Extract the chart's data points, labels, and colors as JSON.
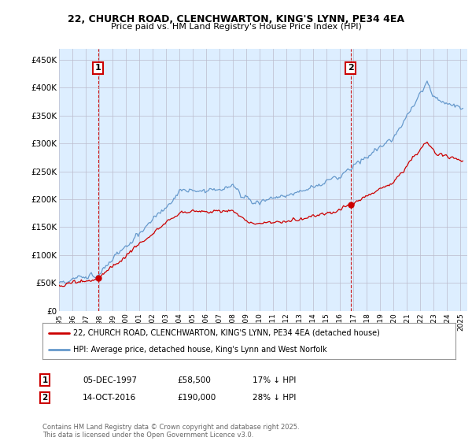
{
  "title_line1": "22, CHURCH ROAD, CLENCHWARTON, KING'S LYNN, PE34 4EA",
  "title_line2": "Price paid vs. HM Land Registry's House Price Index (HPI)",
  "ylabel_ticks": [
    "£0",
    "£50K",
    "£100K",
    "£150K",
    "£200K",
    "£250K",
    "£300K",
    "£350K",
    "£400K",
    "£450K"
  ],
  "ytick_values": [
    0,
    50000,
    100000,
    150000,
    200000,
    250000,
    300000,
    350000,
    400000,
    450000
  ],
  "ylim": [
    0,
    470000
  ],
  "xlim_start": 1995.0,
  "xlim_end": 2025.5,
  "price_paid_color": "#cc0000",
  "hpi_color": "#6699cc",
  "chart_bg": "#ddeeff",
  "marker1_year": 1997.92,
  "marker1_price": 58500,
  "marker2_year": 2016.79,
  "marker2_price": 190000,
  "legend_label1": "22, CHURCH ROAD, CLENCHWARTON, KING'S LYNN, PE34 4EA (detached house)",
  "legend_label2": "HPI: Average price, detached house, King's Lynn and West Norfolk",
  "annot1_label": "1",
  "annot2_label": "2",
  "table_rows": [
    [
      "1",
      "05-DEC-1997",
      "£58,500",
      "17% ↓ HPI"
    ],
    [
      "2",
      "14-OCT-2016",
      "£190,000",
      "28% ↓ HPI"
    ]
  ],
  "footnote": "Contains HM Land Registry data © Crown copyright and database right 2025.\nThis data is licensed under the Open Government Licence v3.0.",
  "background_color": "#ffffff",
  "grid_color": "#bbbbcc"
}
